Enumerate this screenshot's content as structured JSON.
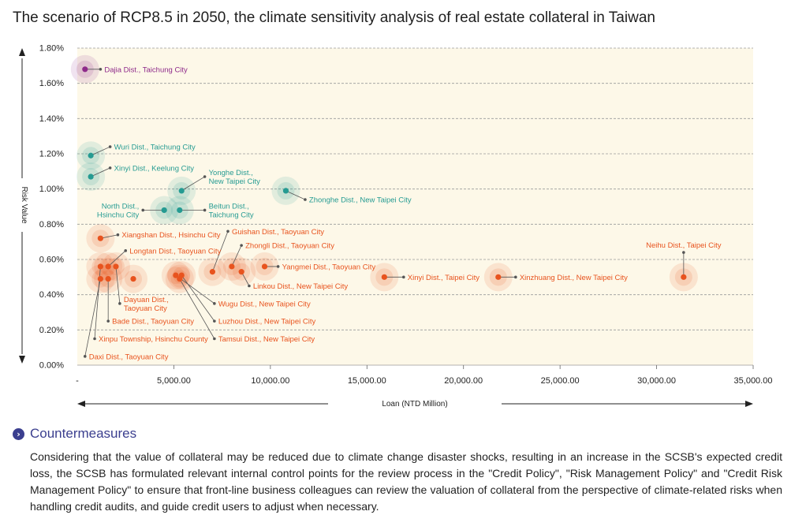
{
  "title": "The scenario of RCP8.5 in 2050, the climate sensitivity analysis of real estate collateral in Taiwan",
  "colors": {
    "purple": "#8e2a8a",
    "teal": "#259b92",
    "orange": "#e8531e",
    "plot_bg": "#fdf8e8",
    "heading": "#3b3f8f"
  },
  "chart_data": {
    "type": "scatter",
    "title": "The scenario of RCP8.5 in 2050, the climate sensitivity analysis of real estate collateral in Taiwan",
    "xlabel": "Loan (NTD Million)",
    "ylabel": "Risk Value",
    "xlim": [
      0,
      35000
    ],
    "ylim": [
      0,
      1.8
    ],
    "grid": true,
    "x_ticks": [
      {
        "value": 0,
        "label": "-"
      },
      {
        "value": 5000,
        "label": "5,000.00"
      },
      {
        "value": 10000,
        "label": "10,000.00"
      },
      {
        "value": 15000,
        "label": "15,000.00"
      },
      {
        "value": 20000,
        "label": "20,000.00"
      },
      {
        "value": 25000,
        "label": "25,000.00"
      },
      {
        "value": 30000,
        "label": "30,000.00"
      },
      {
        "value": 35000,
        "label": "35,000.00"
      }
    ],
    "y_ticks": [
      {
        "value": 0,
        "label": "0.00%"
      },
      {
        "value": 0.2,
        "label": "0.20%"
      },
      {
        "value": 0.4,
        "label": "0.40%"
      },
      {
        "value": 0.6,
        "label": "0.60%"
      },
      {
        "value": 0.8,
        "label": "0.80%"
      },
      {
        "value": 1.0,
        "label": "1.00%"
      },
      {
        "value": 1.2,
        "label": "1.20%"
      },
      {
        "value": 1.4,
        "label": "1.40%"
      },
      {
        "value": 1.6,
        "label": "1.60%"
      },
      {
        "value": 1.8,
        "label": "1.80%"
      }
    ],
    "points": [
      {
        "label": "Dajia Dist., Taichung City",
        "x": 400,
        "y": 1.68,
        "group": "purple",
        "lx": 1200,
        "ly": 1.68,
        "anchor": "start"
      },
      {
        "label": "Wuri Dist., Taichung City",
        "x": 700,
        "y": 1.19,
        "group": "teal",
        "lx": 1700,
        "ly": 1.24,
        "anchor": "start"
      },
      {
        "label": "Xinyi Dist., Keelung City",
        "x": 700,
        "y": 1.07,
        "group": "teal",
        "lx": 1700,
        "ly": 1.12,
        "anchor": "start"
      },
      {
        "label": [
          "Yonghe Dist.,",
          "New Taipei City"
        ],
        "x": 5400,
        "y": 0.99,
        "group": "teal",
        "lx": 6600,
        "ly": 1.07,
        "anchor": "start"
      },
      {
        "label": [
          "North Dist.,",
          "Hsinchu City"
        ],
        "x": 4500,
        "y": 0.88,
        "group": "teal",
        "lx": 3400,
        "ly": 0.88,
        "anchor": "end"
      },
      {
        "label": [
          "Beitun Dist.,",
          "Taichung City"
        ],
        "x": 5300,
        "y": 0.88,
        "group": "teal",
        "lx": 6600,
        "ly": 0.88,
        "anchor": "start"
      },
      {
        "label": "Zhonghe Dist., New Taipei City",
        "x": 10800,
        "y": 0.99,
        "group": "teal",
        "lx": 11800,
        "ly": 0.94,
        "anchor": "start"
      },
      {
        "label": "Xiangshan Dist., Hsinchu City",
        "x": 1200,
        "y": 0.72,
        "group": "orange",
        "lx": 2100,
        "ly": 0.74,
        "anchor": "start"
      },
      {
        "label": "Longtan Dist., Taoyuan City",
        "x": 1600,
        "y": 0.56,
        "group": "orange",
        "lx": 2500,
        "ly": 0.65,
        "anchor": "start"
      },
      {
        "label": [
          "Dayuan Dist.,",
          "Taoyuan City"
        ],
        "x": 2000,
        "y": 0.56,
        "group": "orange",
        "lx": 2200,
        "ly": 0.35,
        "anchor": "start"
      },
      {
        "label": "Bade Dist., Taoyuan City",
        "x": 1600,
        "y": 0.49,
        "group": "orange",
        "lx": 1600,
        "ly": 0.25,
        "anchor": "start"
      },
      {
        "label": "Xinpu Township, Hsinchu County",
        "x": 1200,
        "y": 0.56,
        "group": "orange",
        "lx": 900,
        "ly": 0.15,
        "anchor": "start"
      },
      {
        "label": "Daxi Dist., Taoyuan City",
        "x": 1200,
        "y": 0.49,
        "group": "orange",
        "lx": 400,
        "ly": 0.05,
        "anchor": "start"
      },
      {
        "label": "",
        "x": 2900,
        "y": 0.49,
        "group": "orange"
      },
      {
        "label": "Guishan Dist., Taoyuan City",
        "x": 7000,
        "y": 0.53,
        "group": "orange",
        "lx": 7800,
        "ly": 0.76,
        "anchor": "start"
      },
      {
        "label": "Zhongli Dist., Taoyuan City",
        "x": 8000,
        "y": 0.56,
        "group": "orange",
        "lx": 8500,
        "ly": 0.68,
        "anchor": "start"
      },
      {
        "label": "Yangmei Dist., Taoyuan City",
        "x": 9700,
        "y": 0.56,
        "group": "orange",
        "lx": 10400,
        "ly": 0.56,
        "anchor": "start"
      },
      {
        "label": "Linkou Dist., New Taipei City",
        "x": 8500,
        "y": 0.53,
        "group": "orange",
        "lx": 8900,
        "ly": 0.45,
        "anchor": "start"
      },
      {
        "label": "Wugu Dist., New Taipei City",
        "x": 5100,
        "y": 0.51,
        "group": "orange",
        "lx": 7100,
        "ly": 0.35,
        "anchor": "start"
      },
      {
        "label": "Luzhou Dist., New Taipei City",
        "x": 5400,
        "y": 0.51,
        "group": "orange",
        "lx": 7100,
        "ly": 0.25,
        "anchor": "start"
      },
      {
        "label": "Tamsui Dist., New Taipei City",
        "x": 5300,
        "y": 0.49,
        "group": "orange",
        "lx": 7100,
        "ly": 0.15,
        "anchor": "start"
      },
      {
        "label": "Xinyi Dist., Taipei City",
        "x": 15900,
        "y": 0.5,
        "group": "orange",
        "lx": 16900,
        "ly": 0.5,
        "anchor": "start"
      },
      {
        "label": "Xinzhuang Dist., New Taipei City",
        "x": 21800,
        "y": 0.5,
        "group": "orange",
        "lx": 22700,
        "ly": 0.5,
        "anchor": "start"
      },
      {
        "label": "Neihu Dist., Taipei City",
        "x": 31400,
        "y": 0.5,
        "group": "orange",
        "lx": 31400,
        "ly": 0.64,
        "anchor": "middle"
      }
    ]
  },
  "countermeasures": {
    "heading": "Countermeasures",
    "icon": "chevron-right-icon",
    "body": "Considering that the value of collateral may be reduced due to climate change disaster shocks, resulting in an increase in the SCSB's expected credit loss, the SCSB has formulated relevant internal control points for the review process in the \"Credit Policy\", \"Risk Management Policy\" and \"Credit Risk Management Policy\" to ensure that front-line business colleagues can review the valuation of collateral from the perspective of climate-related risks when handling credit audits, and guide credit users to adjust when necessary."
  }
}
